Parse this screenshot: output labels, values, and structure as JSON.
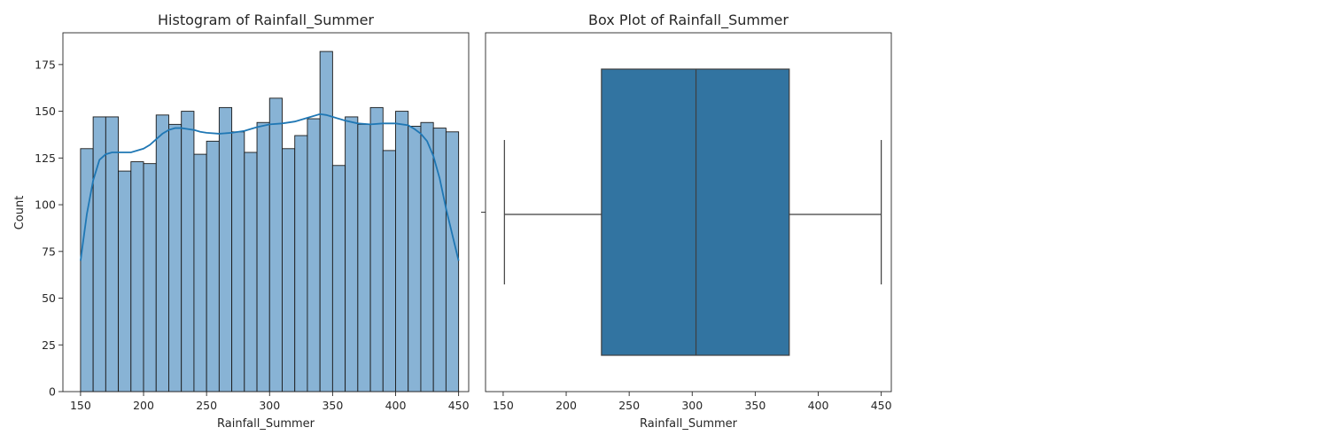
{
  "chart_data": [
    {
      "type": "bar",
      "subtype": "histogram-with-kde",
      "title": "Histogram of Rainfall_Summer",
      "xlabel": "Rainfall_Summer",
      "ylabel": "Count",
      "xlim": [
        136,
        458
      ],
      "ylim": [
        0,
        192
      ],
      "xticks": [
        150,
        200,
        250,
        300,
        350,
        400,
        450
      ],
      "yticks": [
        0,
        25,
        50,
        75,
        100,
        125,
        150,
        175
      ],
      "bin_start": 150,
      "bin_width": 10,
      "counts": [
        130,
        147,
        147,
        118,
        123,
        122,
        148,
        143,
        150,
        127,
        134,
        152,
        139,
        128,
        144,
        157,
        130,
        137,
        146,
        182,
        121,
        147,
        143,
        152,
        129,
        150,
        142,
        144,
        141,
        139
      ],
      "kde": {
        "x": [
          150,
          155,
          160,
          165,
          170,
          175,
          180,
          185,
          190,
          195,
          200,
          205,
          210,
          215,
          220,
          225,
          230,
          235,
          240,
          245,
          250,
          260,
          270,
          280,
          290,
          300,
          310,
          320,
          330,
          340,
          345,
          350,
          360,
          370,
          380,
          390,
          400,
          410,
          415,
          420,
          425,
          430,
          435,
          440,
          445,
          450
        ],
        "y": [
          70,
          95,
          113,
          124,
          127,
          128,
          128,
          128,
          128,
          129,
          130,
          132,
          135,
          138,
          140,
          141,
          141,
          140.5,
          140,
          139,
          138.5,
          138,
          138.5,
          139.5,
          141.5,
          143,
          143.5,
          144.5,
          146.5,
          148.5,
          148,
          147,
          145,
          143.5,
          143,
          143.5,
          143.5,
          142.5,
          140.5,
          138,
          134,
          126,
          114,
          98,
          84,
          70
        ]
      },
      "bar_color": "#88b3d5",
      "line_color": "#1f77b4"
    },
    {
      "type": "box",
      "title": "Box Plot of Rainfall_Summer",
      "xlabel": "Rainfall_Summer",
      "xlim": [
        136,
        458
      ],
      "xticks": [
        150,
        200,
        250,
        300,
        350,
        400,
        450
      ],
      "whisker_low": 151,
      "q1": 228,
      "median": 303,
      "q3": 377,
      "whisker_high": 450,
      "box_color": "#3274a1",
      "line_color": "#3f3f3f"
    }
  ]
}
